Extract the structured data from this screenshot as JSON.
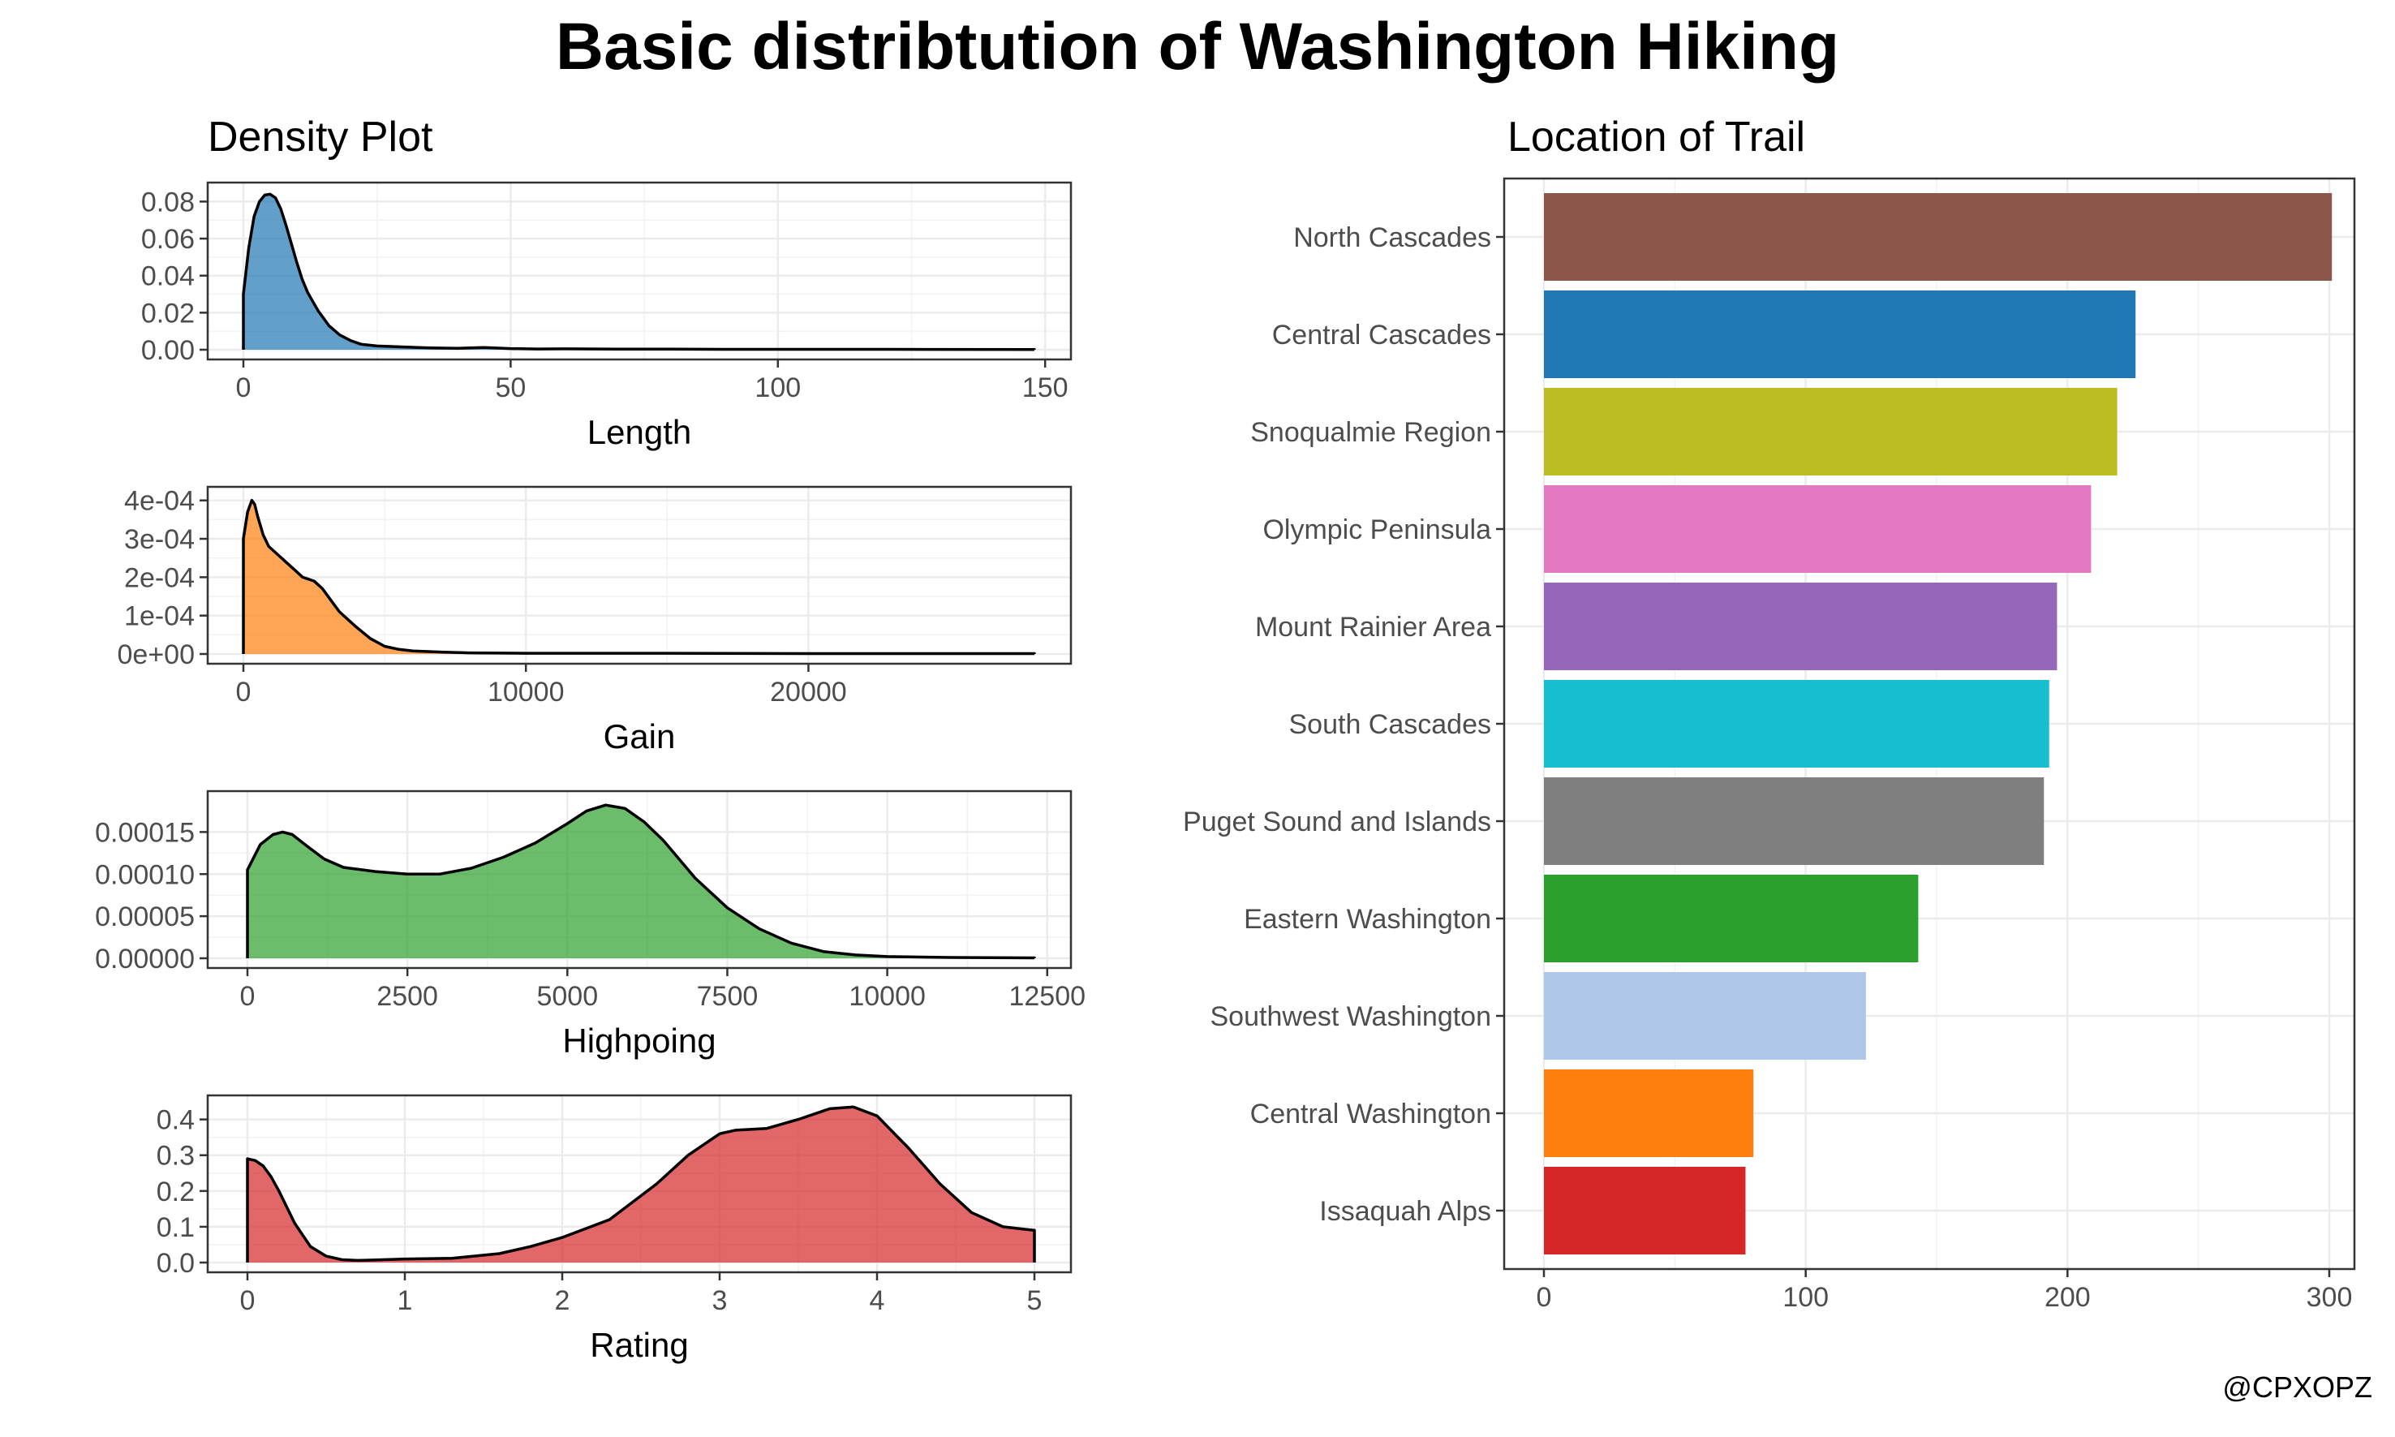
{
  "title": "Basic distribtution of Washington Hiking",
  "credit": "@CPXOPZ",
  "chart_data": [
    {
      "type": "area",
      "panel": "density",
      "subtitle": "Density Plot",
      "xlabel": "Length",
      "ylabel": "",
      "color": "#1f77b4",
      "xlim": [
        0,
        148
      ],
      "ylim": [
        0,
        0.085
      ],
      "xticks": [
        0,
        50,
        100,
        150
      ],
      "xtick_labels": [
        "0",
        "50",
        "100",
        "150"
      ],
      "yticks": [
        0,
        0.02,
        0.04,
        0.06,
        0.08
      ],
      "ytick_labels": [
        "0.00",
        "0.02",
        "0.04",
        "0.06",
        "0.08"
      ],
      "grid": true,
      "x": [
        0,
        1,
        2,
        3,
        4,
        5,
        6,
        7,
        8,
        9,
        10,
        11,
        12,
        13,
        14,
        15,
        16,
        18,
        20,
        22,
        25,
        30,
        35,
        40,
        45,
        50,
        55,
        60,
        70,
        80,
        90,
        100,
        120,
        148
      ],
      "y": [
        0.03,
        0.055,
        0.072,
        0.08,
        0.0835,
        0.084,
        0.082,
        0.076,
        0.067,
        0.057,
        0.047,
        0.038,
        0.031,
        0.026,
        0.021,
        0.017,
        0.013,
        0.008,
        0.005,
        0.003,
        0.002,
        0.0015,
        0.001,
        0.0008,
        0.0012,
        0.0006,
        0.0004,
        0.0005,
        0.0003,
        0.0003,
        0.0002,
        0.0002,
        0.0002,
        0.0001
      ]
    },
    {
      "type": "area",
      "panel": "density",
      "xlabel": "Gain",
      "ylabel": "",
      "color": "#ff7f0e",
      "xlim": [
        0,
        28000
      ],
      "ylim": [
        0,
        0.00041
      ],
      "xticks": [
        0,
        10000,
        20000
      ],
      "xtick_labels": [
        "0",
        "10000",
        "20000"
      ],
      "yticks": [
        0,
        0.0001,
        0.0002,
        0.0003,
        0.0004
      ],
      "ytick_labels": [
        "0e+00",
        "1e-04",
        "2e-04",
        "3e-04",
        "4e-04"
      ],
      "grid": true,
      "x": [
        0,
        150,
        300,
        400,
        500,
        700,
        900,
        1200,
        1500,
        1800,
        2100,
        2500,
        2800,
        3100,
        3400,
        3700,
        4000,
        4500,
        5000,
        5500,
        6000,
        7000,
        8000,
        10000,
        15000,
        20000,
        25000,
        28000
      ],
      "y": [
        0.0003,
        0.00037,
        0.0004,
        0.00039,
        0.00036,
        0.00031,
        0.00028,
        0.00026,
        0.00024,
        0.00022,
        0.0002,
        0.00019,
        0.00017,
        0.00014,
        0.00011,
        9e-05,
        7e-05,
        4e-05,
        2e-05,
        1.2e-05,
        8e-06,
        5e-06,
        3e-06,
        2e-06,
        2e-06,
        1e-06,
        1e-06,
        1e-06
      ]
    },
    {
      "type": "area",
      "panel": "density",
      "xlabel": "Highpoing",
      "ylabel": "",
      "color": "#2ca02c",
      "xlim": [
        0,
        12300
      ],
      "ylim": [
        0,
        0.000187
      ],
      "xticks": [
        0,
        2500,
        5000,
        7500,
        10000,
        12500
      ],
      "xtick_labels": [
        "0",
        "2500",
        "5000",
        "7500",
        "10000",
        "12500"
      ],
      "yticks": [
        0,
        5e-05,
        0.0001,
        0.00015
      ],
      "ytick_labels": [
        "0.00000",
        "0.00005",
        "0.00010",
        "0.00015"
      ],
      "grid": true,
      "x": [
        0,
        200,
        400,
        550,
        700,
        900,
        1200,
        1500,
        2000,
        2500,
        3000,
        3500,
        4000,
        4500,
        5000,
        5300,
        5600,
        5900,
        6200,
        6500,
        7000,
        7500,
        8000,
        8500,
        9000,
        9500,
        10000,
        11000,
        12300
      ],
      "y": [
        0.000105,
        0.000135,
        0.000147,
        0.00015,
        0.000147,
        0.000135,
        0.000118,
        0.000108,
        0.000103,
        0.0001,
        0.0001,
        0.000107,
        0.00012,
        0.000137,
        0.00016,
        0.000175,
        0.000182,
        0.000178,
        0.000162,
        0.00014,
        9.5e-05,
        6e-05,
        3.5e-05,
        1.8e-05,
        8e-06,
        4e-06,
        2e-06,
        1e-06,
        5e-07
      ]
    },
    {
      "type": "area",
      "panel": "density",
      "xlabel": "Rating",
      "ylabel": "",
      "color": "#d62728",
      "xlim": [
        0,
        5
      ],
      "ylim": [
        0,
        0.44
      ],
      "xticks": [
        0,
        1,
        2,
        3,
        4,
        5
      ],
      "xtick_labels": [
        "0",
        "1",
        "2",
        "3",
        "4",
        "5"
      ],
      "yticks": [
        0,
        0.1,
        0.2,
        0.3,
        0.4
      ],
      "ytick_labels": [
        "0.0",
        "0.1",
        "0.2",
        "0.3",
        "0.4"
      ],
      "grid": true,
      "x": [
        0,
        0.05,
        0.1,
        0.15,
        0.2,
        0.3,
        0.4,
        0.5,
        0.6,
        0.7,
        0.8,
        1.0,
        1.3,
        1.6,
        1.8,
        2.0,
        2.3,
        2.6,
        2.8,
        3.0,
        3.1,
        3.3,
        3.5,
        3.7,
        3.85,
        4.0,
        4.2,
        4.4,
        4.6,
        4.8,
        5.0
      ],
      "y": [
        0.29,
        0.285,
        0.27,
        0.24,
        0.2,
        0.11,
        0.045,
        0.018,
        0.008,
        0.006,
        0.007,
        0.01,
        0.012,
        0.025,
        0.045,
        0.07,
        0.12,
        0.22,
        0.3,
        0.36,
        0.37,
        0.375,
        0.4,
        0.43,
        0.435,
        0.41,
        0.32,
        0.22,
        0.14,
        0.1,
        0.09
      ]
    },
    {
      "type": "bar",
      "orientation": "horizontal",
      "subtitle": "Location of Trail",
      "xlabel": "",
      "ylabel": "",
      "xlim": [
        0,
        310
      ],
      "xticks": [
        0,
        100,
        200,
        300
      ],
      "xtick_labels": [
        "0",
        "100",
        "200",
        "300"
      ],
      "grid": true,
      "categories": [
        "North Cascades",
        "Central Cascades",
        "Snoqualmie Region",
        "Olympic Peninsula",
        "Mount Rainier Area",
        "South Cascades",
        "Puget Sound and Islands",
        "Eastern Washington",
        "Southwest Washington",
        "Central Washington",
        "Issaquah Alps"
      ],
      "values": [
        301,
        226,
        219,
        209,
        196,
        193,
        191,
        143,
        123,
        80,
        77
      ],
      "colors": [
        "#8c564b",
        "#1f77b4",
        "#bcbd22",
        "#e377c2",
        "#9467bd",
        "#17becf",
        "#7f7f7f",
        "#2ca02c",
        "#aec7e8",
        "#ff7f0e",
        "#d62728"
      ]
    }
  ]
}
